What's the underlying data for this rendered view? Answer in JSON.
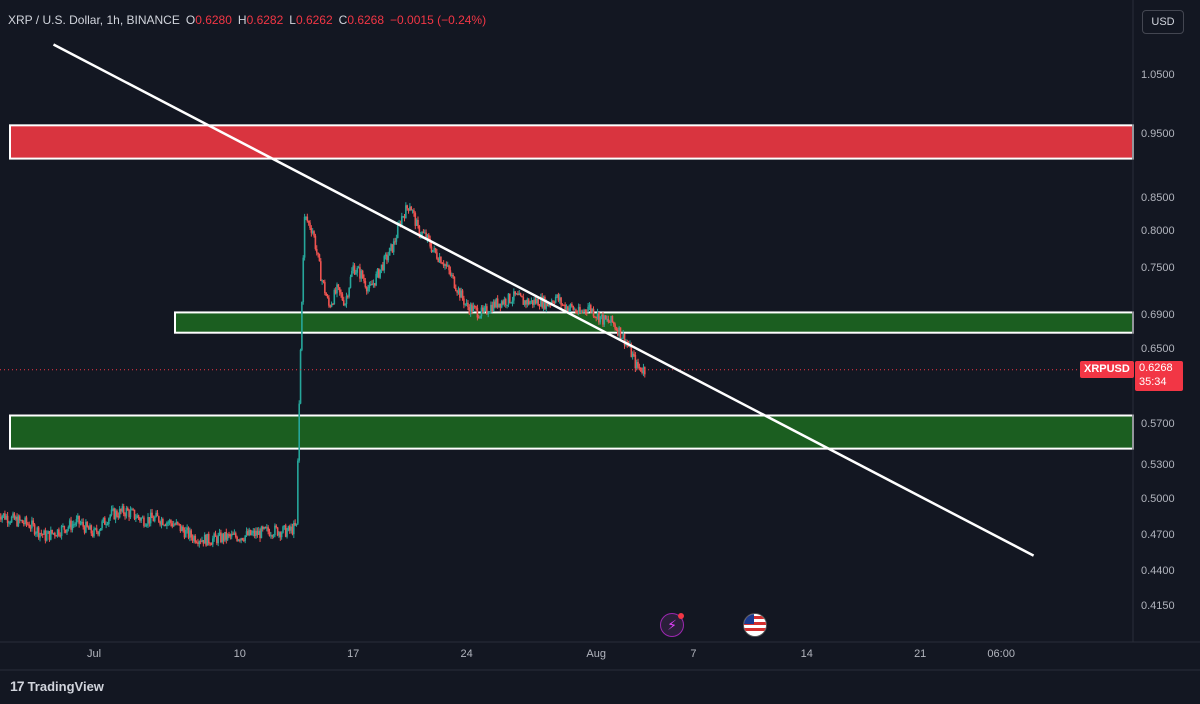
{
  "header": {
    "symbol": "XRP / U.S. Dollar, 1h, BINANCE",
    "o_key": "O",
    "o_val": "0.6280",
    "h_key": "H",
    "h_val": "0.6282",
    "l_key": "L",
    "l_val": "0.6262",
    "c_key": "C",
    "c_val": "0.6268",
    "change": "−0.0015 (−0.24%)"
  },
  "currency_button": "USD",
  "price_tag": {
    "name": "XRPUSD",
    "price": "0.6268",
    "countdown": "35:34"
  },
  "footer": {
    "logo": "17",
    "brand": "TradingView"
  },
  "colors": {
    "bg": "#131722",
    "up": "#26a69a",
    "down": "#ef5350",
    "resistance": "#d9343f",
    "support": "#1b5e20",
    "trendline": "#ffffff"
  },
  "chart_data": {
    "type": "candlestick",
    "y_ticks": [
      "1.0500",
      "0.9500",
      "0.8500",
      "0.8000",
      "0.7500",
      "0.6900",
      "0.6500",
      "0.5700",
      "0.5300",
      "0.5000",
      "0.4700",
      "0.4400",
      "0.4150"
    ],
    "x_ticks": [
      {
        "label": "Jul",
        "day": 1
      },
      {
        "label": "10",
        "day": 10
      },
      {
        "label": "17",
        "day": 17
      },
      {
        "label": "24",
        "day": 24
      },
      {
        "label": "Aug",
        "day": 32
      },
      {
        "label": "7",
        "day": 38
      },
      {
        "label": "14",
        "day": 45
      },
      {
        "label": "21",
        "day": 52
      },
      {
        "label": "06:00",
        "day": 57
      }
    ],
    "zones": [
      {
        "kind": "resistance",
        "y_top": 0.963,
        "y_bottom": 0.91,
        "x_start_day": -5
      },
      {
        "kind": "support",
        "y_top": 0.692,
        "y_bottom": 0.668,
        "x_start_day": 6
      },
      {
        "kind": "support",
        "y_top": 0.578,
        "y_bottom": 0.545,
        "x_start_day": -5
      }
    ],
    "trendline": {
      "start": {
        "day": -1.5,
        "price": 1.1
      },
      "end": {
        "day": 59,
        "price": 0.452
      }
    },
    "last_price": 0.6268,
    "price_path": [
      [
        -5,
        0.488
      ],
      [
        -4,
        0.482
      ],
      [
        -3,
        0.478
      ],
      [
        -2,
        0.468
      ],
      [
        -1,
        0.474
      ],
      [
        0,
        0.48
      ],
      [
        1,
        0.47
      ],
      [
        2,
        0.486
      ],
      [
        3,
        0.489
      ],
      [
        4,
        0.482
      ],
      [
        5,
        0.483
      ],
      [
        6,
        0.478
      ],
      [
        7,
        0.468
      ],
      [
        8,
        0.465
      ],
      [
        9,
        0.467
      ],
      [
        10,
        0.468
      ],
      [
        11,
        0.47
      ],
      [
        12,
        0.473
      ],
      [
        13,
        0.472
      ],
      [
        13.5,
        0.476
      ],
      [
        14,
        0.82
      ],
      [
        14.5,
        0.8
      ],
      [
        15,
        0.74
      ],
      [
        15.5,
        0.7
      ],
      [
        16,
        0.72
      ],
      [
        16.5,
        0.705
      ],
      [
        17,
        0.75
      ],
      [
        17.5,
        0.74
      ],
      [
        18,
        0.72
      ],
      [
        18.5,
        0.74
      ],
      [
        19,
        0.76
      ],
      [
        19.5,
        0.78
      ],
      [
        20,
        0.82
      ],
      [
        20.5,
        0.84
      ],
      [
        21,
        0.8
      ],
      [
        21.5,
        0.79
      ],
      [
        22,
        0.77
      ],
      [
        22.5,
        0.76
      ],
      [
        23,
        0.74
      ],
      [
        23.5,
        0.72
      ],
      [
        24,
        0.7
      ],
      [
        24.5,
        0.695
      ],
      [
        25,
        0.69
      ],
      [
        25.5,
        0.7
      ],
      [
        26,
        0.705
      ],
      [
        26.5,
        0.708
      ],
      [
        27,
        0.712
      ],
      [
        27.5,
        0.706
      ],
      [
        28,
        0.705
      ],
      [
        28.5,
        0.707
      ],
      [
        29,
        0.703
      ],
      [
        29.5,
        0.712
      ],
      [
        30,
        0.7
      ],
      [
        30.5,
        0.698
      ],
      [
        31,
        0.69
      ],
      [
        31.5,
        0.7
      ],
      [
        32,
        0.69
      ],
      [
        32.5,
        0.682
      ],
      [
        33,
        0.68
      ],
      [
        33.5,
        0.668
      ],
      [
        34,
        0.652
      ],
      [
        34.5,
        0.63
      ],
      [
        35,
        0.6268
      ]
    ]
  }
}
